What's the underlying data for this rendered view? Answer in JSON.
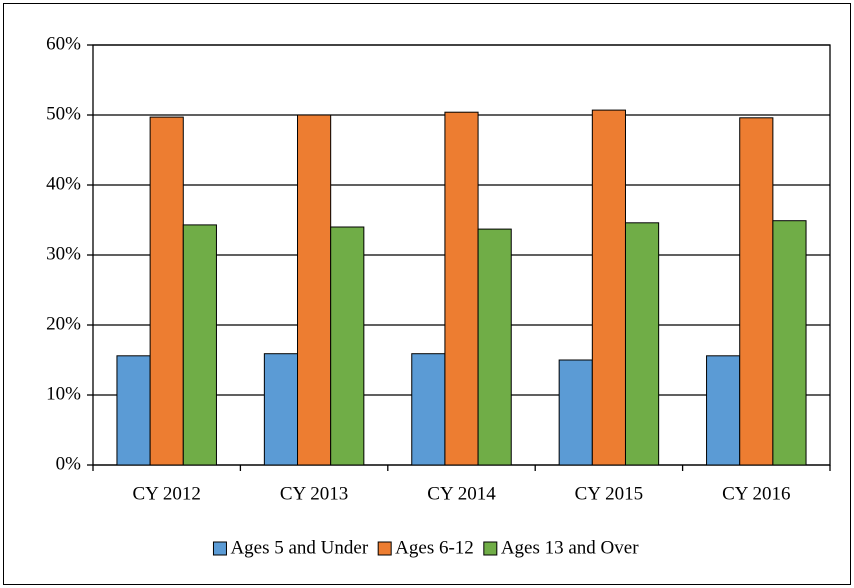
{
  "chart_data": {
    "type": "bar",
    "categories": [
      "CY 2012",
      "CY 2013",
      "CY 2014",
      "CY 2015",
      "CY 2016"
    ],
    "series": [
      {
        "name": "Ages 5 and Under",
        "color": "#5b9bd5",
        "values": [
          15.6,
          15.9,
          15.9,
          15.0,
          15.6
        ]
      },
      {
        "name": "Ages 6-12",
        "color": "#ed7d31",
        "values": [
          49.7,
          50.0,
          50.4,
          50.7,
          49.6
        ]
      },
      {
        "name": "Ages 13 and Over",
        "color": "#70ad47",
        "values": [
          34.3,
          34.0,
          33.7,
          34.6,
          34.9
        ]
      }
    ],
    "ylim": [
      0,
      60
    ],
    "yticks": [
      {
        "value": 0,
        "label": "0%"
      },
      {
        "value": 10,
        "label": "10%"
      },
      {
        "value": 20,
        "label": "20%"
      },
      {
        "value": 30,
        "label": "30%"
      },
      {
        "value": 40,
        "label": "40%"
      },
      {
        "value": 50,
        "label": "50%"
      },
      {
        "value": 60,
        "label": "60%"
      }
    ],
    "grid": true,
    "legend": "bottom"
  }
}
